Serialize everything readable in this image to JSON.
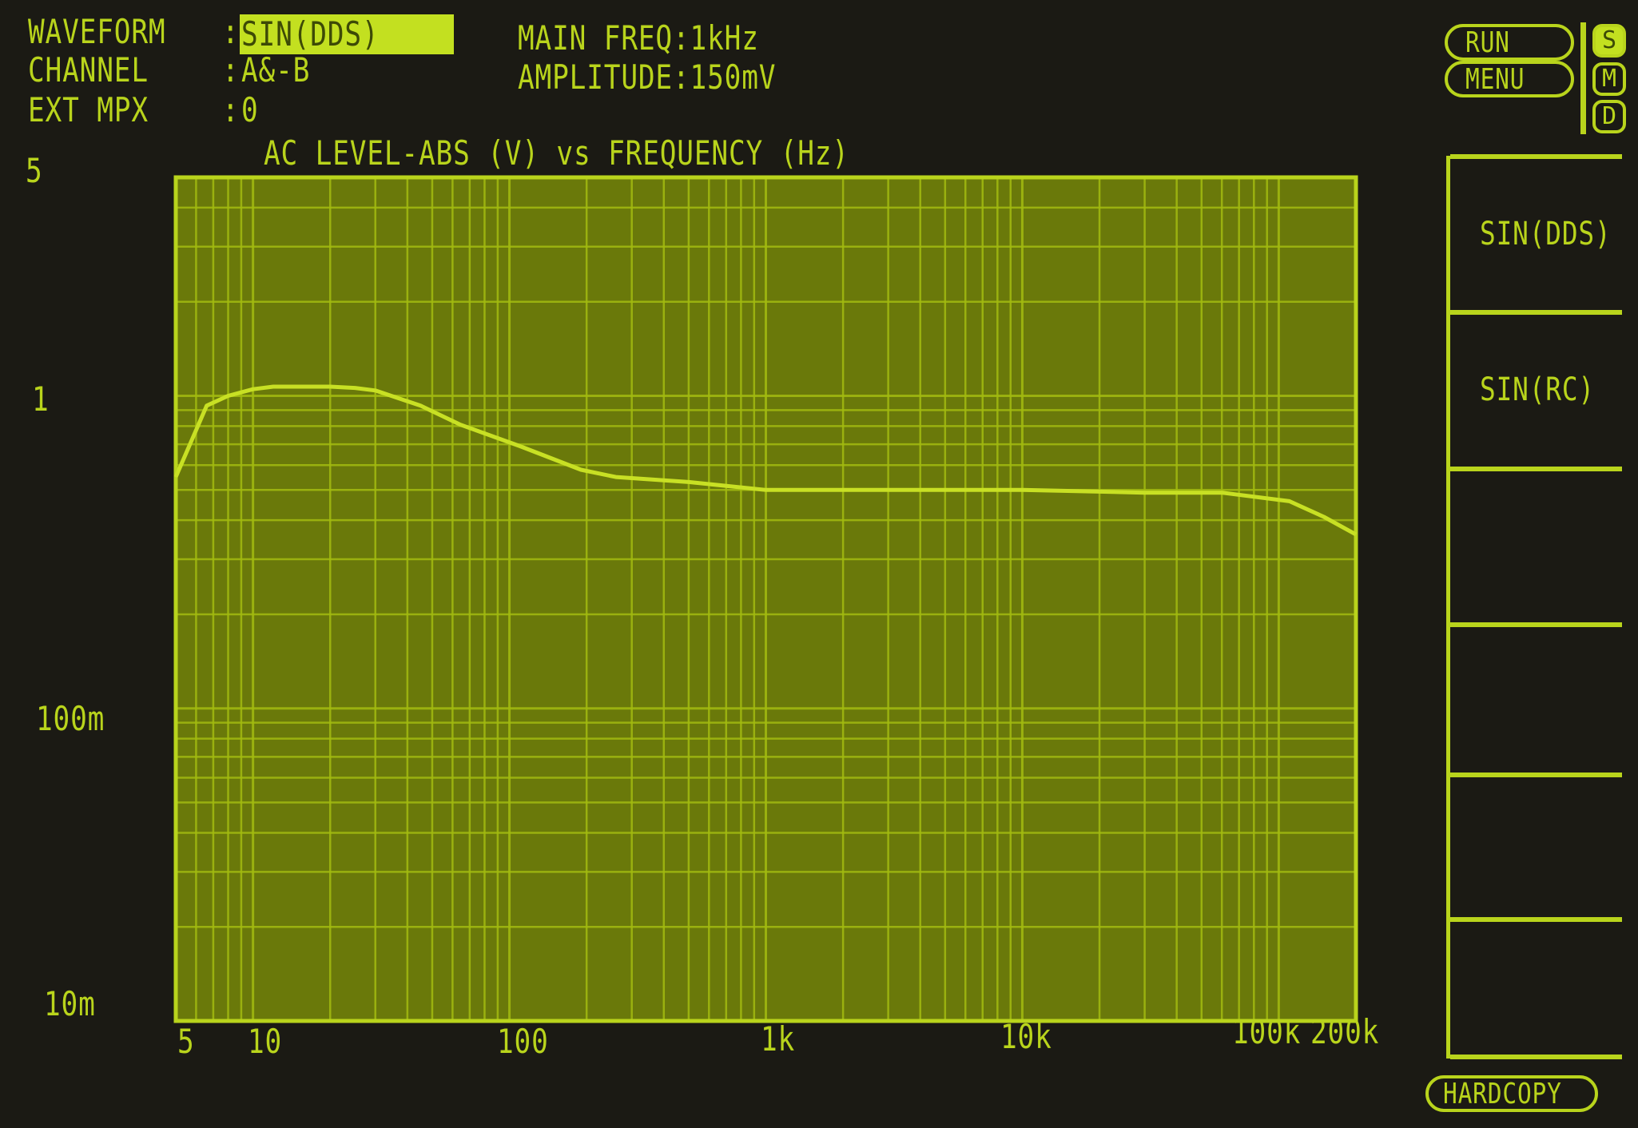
{
  "header": {
    "waveform_label": "WAVEFORM",
    "waveform_value": "SIN(DDS)",
    "channel_label": "CHANNEL",
    "channel_value": "A&-B",
    "ext_mpx_label": "EXT MPX",
    "ext_mpx_value": "0",
    "main_freq": "MAIN FREQ:1kHz",
    "amplitude": "AMPLITUDE:150mV"
  },
  "controls": {
    "run": "RUN",
    "menu": "MENU",
    "indicators": [
      {
        "label": "S",
        "active": true
      },
      {
        "label": "M",
        "active": false
      },
      {
        "label": "D",
        "active": false
      }
    ],
    "softkeys": [
      "SIN(DDS)",
      "SIN(RC)",
      "",
      "",
      "",
      ""
    ],
    "hardcopy": "HARDCOPY"
  },
  "colors": {
    "background": "#1b1a14",
    "trace": "#c8e024",
    "grid": "#a3bb10",
    "plot_fill": "#6a790a",
    "text": "#b9d41c"
  },
  "chart_data": {
    "type": "line",
    "title": "AC LEVEL-ABS (V) vs FREQUENCY (Hz)",
    "xscale": "log",
    "yscale": "log",
    "xlim": [
      5,
      200000
    ],
    "ylim": [
      0.01,
      5
    ],
    "grid": true,
    "x_ticks": [
      "5",
      "10",
      "100",
      "1k",
      "10k",
      "100k",
      "200k"
    ],
    "y_ticks": [
      "5",
      "1",
      "100m",
      "10m"
    ],
    "series": [
      {
        "x": [
          5,
          6.6,
          8,
          10,
          12,
          20,
          25,
          30,
          45,
          64,
          110,
          190,
          260,
          500,
          1000,
          3000,
          10000,
          30000,
          60000,
          110000,
          150000,
          200000
        ],
        "y": [
          0.55,
          0.93,
          1.0,
          1.05,
          1.07,
          1.07,
          1.06,
          1.04,
          0.93,
          0.81,
          0.69,
          0.58,
          0.55,
          0.53,
          0.5,
          0.5,
          0.5,
          0.49,
          0.49,
          0.46,
          0.41,
          0.36
        ]
      }
    ]
  }
}
